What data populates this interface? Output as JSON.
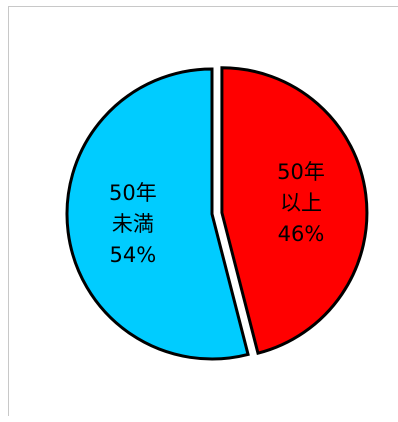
{
  "chart_data": {
    "type": "pie",
    "title": "",
    "slices": [
      {
        "lines": [
          "50年",
          "以上",
          "46%"
        ],
        "value": 46,
        "color": "#ff0000",
        "exploded": true
      },
      {
        "lines": [
          "50年",
          "未満",
          "54%"
        ],
        "value": 54,
        "color": "#00ccff",
        "exploded": false
      }
    ],
    "start_angle_deg": 0,
    "direction": "clockwise"
  }
}
